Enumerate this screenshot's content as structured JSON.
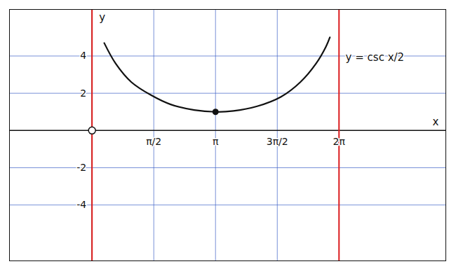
{
  "chart_data": {
    "type": "line",
    "x": [
      0.31,
      0.6,
      1.0,
      1.5,
      2.0,
      2.6,
      3.1416,
      3.6,
      4.2,
      4.8,
      5.3,
      5.7,
      5.95,
      6.05
    ],
    "values": [
      4.7,
      3.6,
      2.6,
      1.9,
      1.4,
      1.1,
      1.0,
      1.05,
      1.3,
      1.8,
      2.6,
      3.6,
      4.5,
      5.0
    ],
    "color": "#111111",
    "xlim": [
      -2.1,
      9.0
    ],
    "ylim": [
      -7,
      6.5
    ],
    "xticks": [
      {
        "value": 1.5708,
        "label": "π/2"
      },
      {
        "value": 3.1416,
        "label": "π"
      },
      {
        "value": 4.7124,
        "label": "3π/2"
      },
      {
        "value": 6.2832,
        "label": "2π"
      }
    ],
    "yticks": [
      -4,
      -2,
      2,
      4
    ],
    "grid": true,
    "x_label": "x",
    "y_label": "y",
    "annotations": [
      {
        "text": "y = csc x/2",
        "x": 6.45,
        "y": 3.9
      }
    ],
    "asymptotes": {
      "x": [
        0,
        6.2832
      ],
      "color": "#e02020"
    },
    "points": [
      {
        "x": 3.1416,
        "y": 1
      }
    ],
    "open_points": [
      {
        "x": 0,
        "y": 0
      }
    ]
  }
}
